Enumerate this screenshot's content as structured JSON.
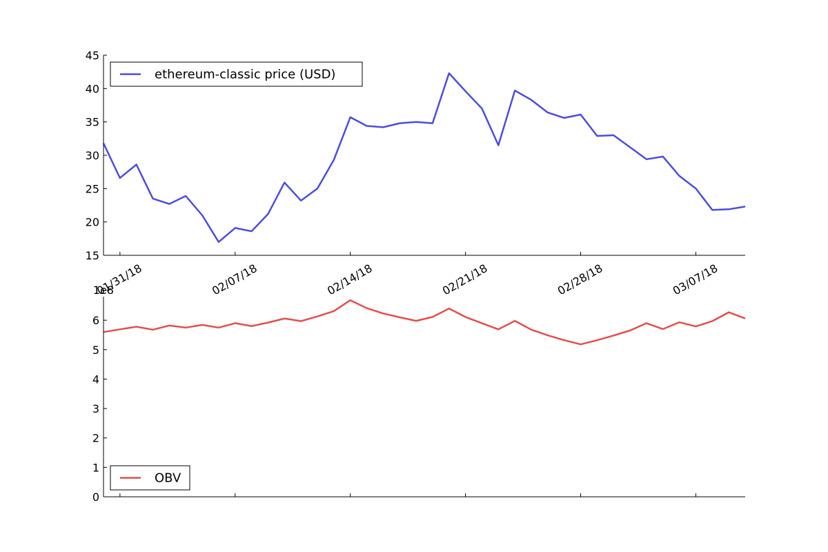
{
  "chart_data": [
    {
      "type": "line",
      "x_type": "date",
      "x": [
        "2018-01-30",
        "2018-01-31",
        "2018-02-01",
        "2018-02-02",
        "2018-02-03",
        "2018-02-04",
        "2018-02-05",
        "2018-02-06",
        "2018-02-07",
        "2018-02-08",
        "2018-02-09",
        "2018-02-10",
        "2018-02-11",
        "2018-02-12",
        "2018-02-13",
        "2018-02-14",
        "2018-02-15",
        "2018-02-16",
        "2018-02-17",
        "2018-02-18",
        "2018-02-19",
        "2018-02-20",
        "2018-02-21",
        "2018-02-22",
        "2018-02-23",
        "2018-02-24",
        "2018-02-25",
        "2018-02-26",
        "2018-02-27",
        "2018-02-28",
        "2018-03-01",
        "2018-03-02",
        "2018-03-03",
        "2018-03-04",
        "2018-03-05",
        "2018-03-06",
        "2018-03-07",
        "2018-03-08",
        "2018-03-09",
        "2018-03-10"
      ],
      "series": [
        {
          "name": "ethereum-classic price (USD)",
          "color": "#4b4bdf",
          "values": [
            31.8,
            26.6,
            28.6,
            23.5,
            22.7,
            23.9,
            21.0,
            17.0,
            19.1,
            18.6,
            21.2,
            25.9,
            23.2,
            25.0,
            29.3,
            35.7,
            34.4,
            34.2,
            34.8,
            35.0,
            34.8,
            42.3,
            39.6,
            37.0,
            31.5,
            39.7,
            38.3,
            36.4,
            35.6,
            36.1,
            32.9,
            33.0,
            31.2,
            29.4,
            29.8,
            26.9,
            25.0,
            21.8,
            21.9,
            22.3
          ]
        }
      ],
      "ylim": [
        15,
        45
      ],
      "yticks": [
        "15",
        "20",
        "25",
        "30",
        "35",
        "40",
        "45"
      ],
      "xtick_labels": [
        "01/31/18",
        "02/07/18",
        "02/14/18",
        "02/21/18",
        "02/28/18",
        "03/07/18"
      ],
      "legend_position": "upper left"
    },
    {
      "type": "line",
      "x_type": "date",
      "x": [
        "2018-01-30",
        "2018-01-31",
        "2018-02-01",
        "2018-02-02",
        "2018-02-03",
        "2018-02-04",
        "2018-02-05",
        "2018-02-06",
        "2018-02-07",
        "2018-02-08",
        "2018-02-09",
        "2018-02-10",
        "2018-02-11",
        "2018-02-12",
        "2018-02-13",
        "2018-02-14",
        "2018-02-15",
        "2018-02-16",
        "2018-02-17",
        "2018-02-18",
        "2018-02-19",
        "2018-02-20",
        "2018-02-21",
        "2018-02-22",
        "2018-02-23",
        "2018-02-24",
        "2018-02-25",
        "2018-02-26",
        "2018-02-27",
        "2018-02-28",
        "2018-03-01",
        "2018-03-02",
        "2018-03-03",
        "2018-03-04",
        "2018-03-05",
        "2018-03-06",
        "2018-03-07",
        "2018-03-08",
        "2018-03-09",
        "2018-03-10"
      ],
      "series": [
        {
          "name": "OBV",
          "color": "#e64c4c",
          "values": [
            5.6,
            5.69,
            5.78,
            5.68,
            5.82,
            5.75,
            5.84,
            5.75,
            5.9,
            5.8,
            5.92,
            6.06,
            5.97,
            6.13,
            6.31,
            6.68,
            6.41,
            6.23,
            6.1,
            5.98,
            6.11,
            6.4,
            6.11,
            5.9,
            5.69,
            5.98,
            5.68,
            5.49,
            5.32,
            5.18,
            5.32,
            5.48,
            5.65,
            5.9,
            5.7,
            5.93,
            5.79,
            5.97,
            6.27,
            6.06
          ]
        }
      ],
      "ylim": [
        0,
        6.8
      ],
      "yticks": [
        "0",
        "1",
        "2",
        "3",
        "4",
        "5",
        "6"
      ],
      "y_offset_label": "1e8",
      "legend_position": "lower left"
    }
  ]
}
